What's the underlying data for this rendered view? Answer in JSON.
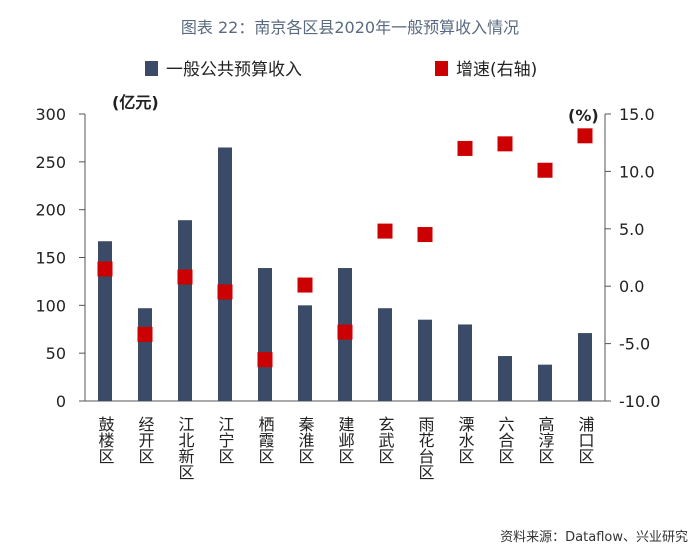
{
  "chart_data": {
    "type": "bar",
    "title": "图表 22：南京各区县2020年一般预算收入情况",
    "categories": [
      "鼓楼区",
      "经开区",
      "江北新区",
      "江宁区",
      "栖霞区",
      "秦淮区",
      "建邺区",
      "玄武区",
      "雨花台区",
      "溧水区",
      "六合区",
      "高淳区",
      "浦口区"
    ],
    "series": [
      {
        "name": "一般公共预算收入",
        "kind": "bar",
        "axis": "left",
        "color": "#3b4a66",
        "values": [
          167,
          97,
          189,
          265,
          139,
          100,
          139,
          97,
          85,
          80,
          47,
          38,
          71
        ]
      },
      {
        "name": "增速(右轴)",
        "kind": "marker",
        "axis": "right",
        "color": "#cc0000",
        "values": [
          1.5,
          -4.2,
          0.8,
          -0.5,
          -6.4,
          0.1,
          -4.0,
          4.8,
          4.5,
          12.0,
          12.4,
          10.1,
          13.1
        ]
      }
    ],
    "y_left": {
      "unit": "(亿元)",
      "ylim": [
        0,
        300
      ],
      "ticks": [
        "0",
        "50",
        "100",
        "150",
        "200",
        "250",
        "300"
      ]
    },
    "y_right": {
      "unit": "(%)",
      "ylim": [
        -10,
        15
      ],
      "ticks": [
        "-10.0",
        "-5.0",
        "0.0",
        "5.0",
        "10.0",
        "15.0"
      ]
    },
    "legend_position": "top",
    "source": "资料来源：Dataflow、兴业研究"
  }
}
